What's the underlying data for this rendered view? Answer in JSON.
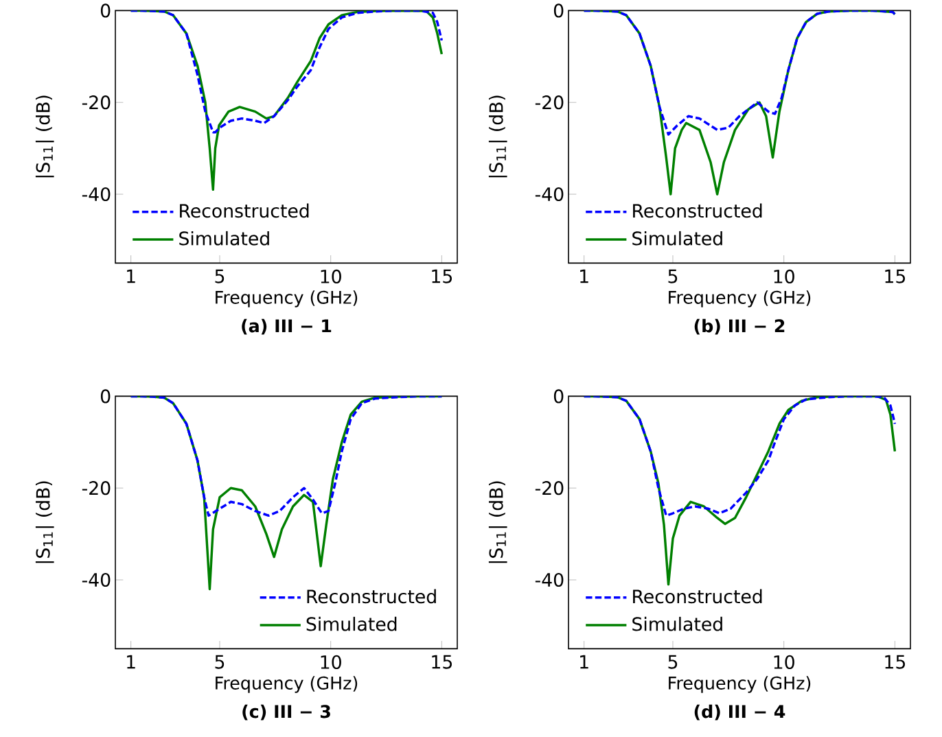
{
  "chart_data": [
    {
      "type": "line",
      "title": "(a) III − 1",
      "xlabel": "Frequency (GHz)",
      "ylabel": "|S$_{11}$| (dB)",
      "xlim": [
        0.3,
        15.7
      ],
      "ylim": [
        -55,
        0
      ],
      "xticks": [
        1,
        5,
        10,
        15
      ],
      "yticks": [
        0,
        -20,
        -40
      ],
      "legend": "bottom left",
      "series": [
        {
          "name": "Reconstructed",
          "color": "#0000ff",
          "line_style": "dashed",
          "x": [
            1,
            1.5,
            2,
            2.5,
            2.9,
            3.5,
            4.0,
            4.35,
            4.7,
            4.8,
            5.0,
            5.5,
            6.0,
            6.6,
            7.0,
            7.45,
            8.07,
            8.5,
            9.1,
            9.5,
            9.9,
            10.5,
            11.2,
            12,
            13,
            14,
            14.6,
            14.8,
            15
          ],
          "values": [
            0,
            0,
            -0.1,
            -0.2,
            -1,
            -5,
            -14,
            -22,
            -26.5,
            -26.5,
            -25.5,
            -24,
            -23.5,
            -24,
            -24.5,
            -23,
            -19.5,
            -16.5,
            -13,
            -8,
            -4,
            -1.5,
            -0.5,
            -0.2,
            0,
            0,
            -0.5,
            -2.5,
            -6.5
          ]
        },
        {
          "name": "Simulated",
          "color": "#008000",
          "line_style": "solid",
          "x": [
            1,
            1.5,
            2,
            2.5,
            2.9,
            3.5,
            4.0,
            4.35,
            4.55,
            4.7,
            4.8,
            4.97,
            5.4,
            5.9,
            6.6,
            7.1,
            7.45,
            8.07,
            8.5,
            9.1,
            9.5,
            9.9,
            10.5,
            11.2,
            12,
            13.2,
            14.3,
            14.6,
            14.8,
            15
          ],
          "values": [
            0,
            0,
            -0.1,
            -0.2,
            -1,
            -5,
            -12,
            -20,
            -30,
            -39,
            -30,
            -25,
            -22,
            -21,
            -22,
            -23.5,
            -23,
            -19,
            -15.5,
            -11,
            -6,
            -3,
            -1,
            -0.3,
            -0.1,
            0,
            -0.1,
            -1.5,
            -5,
            -9.5
          ]
        }
      ]
    },
    {
      "type": "line",
      "title": "(b) III − 2",
      "xlabel": "Frequency (GHz)",
      "ylabel": "|S$_{11}$| (dB)",
      "xlim": [
        0.3,
        15.7
      ],
      "ylim": [
        -55,
        0
      ],
      "xticks": [
        1,
        5,
        10,
        15
      ],
      "yticks": [
        0,
        -20,
        -40
      ],
      "legend": "bottom left",
      "series": [
        {
          "name": "Reconstructed",
          "color": "#0000ff",
          "line_style": "dashed",
          "x": [
            1,
            1.5,
            2,
            2.5,
            2.9,
            3.5,
            4.0,
            4.4,
            4.8,
            5.2,
            5.7,
            6.2,
            7.0,
            7.5,
            8.0,
            8.8,
            9.3,
            9.6,
            9.9,
            10.2,
            10.6,
            11.0,
            11.5,
            12,
            13,
            14,
            14.9,
            15
          ],
          "values": [
            0,
            0,
            -0.1,
            -0.2,
            -1,
            -5,
            -12,
            -21,
            -27,
            -25,
            -23,
            -23.5,
            -26,
            -25.5,
            -23,
            -20,
            -22,
            -22.5,
            -19,
            -13,
            -6,
            -2.5,
            -0.7,
            -0.2,
            0,
            0,
            -0.3,
            -0.8
          ]
        },
        {
          "name": "Simulated",
          "color": "#008000",
          "line_style": "solid",
          "x": [
            1,
            1.5,
            2,
            2.5,
            2.9,
            3.5,
            4.0,
            4.4,
            4.7,
            4.9,
            5.1,
            5.4,
            5.6,
            6.2,
            6.7,
            7.0,
            7.3,
            7.8,
            8.4,
            8.9,
            9.2,
            9.5,
            9.8,
            10.2,
            10.6,
            11.0,
            11.5,
            12,
            13,
            14,
            14.9,
            15
          ],
          "values": [
            0,
            0,
            -0.1,
            -0.2,
            -1,
            -5,
            -12,
            -21,
            -32,
            -40,
            -30,
            -26,
            -24.5,
            -26,
            -33,
            -40,
            -33,
            -26,
            -21.5,
            -20,
            -23,
            -32,
            -22,
            -13,
            -6,
            -2.5,
            -0.7,
            -0.2,
            0,
            0,
            -0.3,
            -0.8
          ]
        }
      ]
    },
    {
      "type": "line",
      "title": "(c) III − 3",
      "xlabel": "Frequency (GHz)",
      "ylabel": "|S$_{11}$| (dB)",
      "xlim": [
        0.3,
        15.7
      ],
      "ylim": [
        -55,
        0
      ],
      "xticks": [
        1,
        5,
        10,
        15
      ],
      "yticks": [
        0,
        -20,
        -40
      ],
      "legend": "bottom right",
      "series": [
        {
          "name": "Reconstructed",
          "color": "#0000ff",
          "line_style": "dashed",
          "x": [
            1,
            1.5,
            2,
            2.5,
            2.9,
            3.5,
            4.0,
            4.3,
            4.5,
            5.0,
            5.5,
            6.0,
            6.6,
            7.2,
            7.7,
            8.3,
            8.8,
            9.2,
            9.6,
            9.9,
            10.2,
            10.5,
            10.9,
            11.4,
            12,
            13,
            14,
            15
          ],
          "values": [
            0,
            0,
            -0.1,
            -0.3,
            -1.5,
            -6,
            -14,
            -22,
            -26,
            -24.5,
            -23,
            -23.5,
            -25,
            -26,
            -25,
            -22,
            -20,
            -22.5,
            -25.5,
            -25,
            -19,
            -12,
            -5,
            -1.5,
            -0.5,
            -0.2,
            0,
            0
          ]
        },
        {
          "name": "Simulated",
          "color": "#008000",
          "line_style": "solid",
          "x": [
            1,
            1.5,
            2,
            2.5,
            2.9,
            3.5,
            4.0,
            4.3,
            4.55,
            4.7,
            5.0,
            5.5,
            6.0,
            6.6,
            7.1,
            7.45,
            7.8,
            8.3,
            8.8,
            9.2,
            9.55,
            9.8,
            10.1,
            10.5,
            10.9,
            11.4,
            12,
            13,
            14,
            15
          ],
          "values": [
            0,
            0,
            -0.1,
            -0.3,
            -1.5,
            -6,
            -14,
            -22,
            -42,
            -29,
            -22,
            -20,
            -20.5,
            -24,
            -30,
            -35,
            -29,
            -24,
            -21.5,
            -23,
            -37,
            -28,
            -18,
            -10,
            -4,
            -1.2,
            -0.3,
            -0.1,
            0,
            0
          ]
        }
      ]
    },
    {
      "type": "line",
      "title": "(d) III − 4",
      "xlabel": "Frequency (GHz)",
      "ylabel": "|S$_{11}$| (dB)",
      "xlim": [
        0.3,
        15.7
      ],
      "ylim": [
        -55,
        0
      ],
      "xticks": [
        1,
        5,
        10,
        15
      ],
      "yticks": [
        0,
        -20,
        -40
      ],
      "legend": "bottom left",
      "series": [
        {
          "name": "Reconstructed",
          "color": "#0000ff",
          "line_style": "dashed",
          "x": [
            1,
            1.5,
            2,
            2.5,
            2.9,
            3.5,
            4.0,
            4.35,
            4.7,
            5.0,
            5.5,
            6.0,
            6.6,
            7.1,
            7.6,
            8.3,
            8.8,
            9.3,
            9.6,
            10.0,
            10.5,
            11.0,
            12,
            13,
            14,
            14.5,
            14.8,
            15
          ],
          "values": [
            0,
            0,
            -0.1,
            -0.2,
            -1,
            -5,
            -12,
            -20,
            -26,
            -25.5,
            -24.5,
            -24,
            -24.5,
            -25.5,
            -24.5,
            -21,
            -18,
            -14,
            -10,
            -5,
            -2,
            -0.7,
            -0.2,
            0,
            0,
            -0.2,
            -2,
            -6
          ]
        },
        {
          "name": "Simulated",
          "color": "#008000",
          "line_style": "solid",
          "x": [
            1,
            1.5,
            2,
            2.5,
            2.9,
            3.5,
            4.0,
            4.35,
            4.6,
            4.8,
            5.0,
            5.3,
            5.8,
            6.4,
            7.0,
            7.35,
            7.8,
            8.3,
            8.8,
            9.3,
            9.8,
            10.2,
            10.8,
            11.5,
            12.5,
            13.5,
            14.2,
            14.6,
            14.8,
            15
          ],
          "values": [
            0,
            0,
            -0.1,
            -0.2,
            -1,
            -5,
            -12,
            -19,
            -28,
            -41,
            -31,
            -26,
            -23,
            -24,
            -26.5,
            -27.8,
            -26.5,
            -22,
            -17,
            -12,
            -6,
            -3,
            -1,
            -0.2,
            0,
            0,
            0,
            -0.8,
            -4,
            -12
          ]
        }
      ]
    }
  ]
}
